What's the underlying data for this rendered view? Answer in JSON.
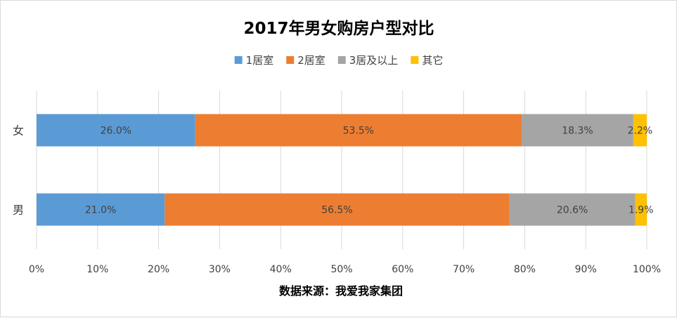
{
  "chart_data": {
    "type": "bar",
    "orientation": "horizontal",
    "stacked": "percent",
    "title": "2017年男女购房户型对比",
    "categories": [
      "女",
      "男"
    ],
    "series": [
      {
        "name": "1居室",
        "values": [
          26.0,
          21.0
        ],
        "labels": [
          "26.0%",
          "21.0%"
        ],
        "color": "#5b9bd5"
      },
      {
        "name": "2居室",
        "values": [
          53.5,
          56.5
        ],
        "labels": [
          "53.5%",
          "56.5%"
        ],
        "color": "#ed7d31"
      },
      {
        "name": "3居及以上",
        "values": [
          18.3,
          20.6
        ],
        "labels": [
          "18.3%",
          "20.6%"
        ],
        "color": "#a5a5a5"
      },
      {
        "name": "其它",
        "values": [
          2.2,
          1.9
        ],
        "labels": [
          "2.2%",
          "1.9%"
        ],
        "color": "#ffc000"
      }
    ],
    "xlim": [
      0,
      100
    ],
    "x_ticks": [
      "0%",
      "10%",
      "20%",
      "30%",
      "40%",
      "50%",
      "60%",
      "70%",
      "80%",
      "90%",
      "100%"
    ],
    "legend_position": "top",
    "grid": true,
    "gridline_color": "#d9d9d9",
    "source": "数据来源：我爱我家集团"
  }
}
